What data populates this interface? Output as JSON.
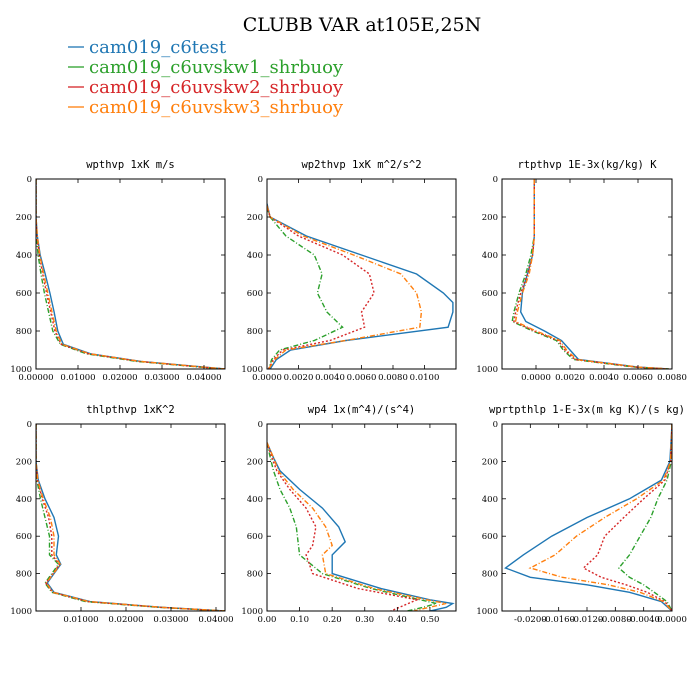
{
  "figure": {
    "title": "CLUBB VAR at105E,25N",
    "legend": [
      {
        "label": "cam019_c6test",
        "color": "#1f77b4",
        "dash": ""
      },
      {
        "label": "cam019_c6uvskw1_shrbuoy",
        "color": "#2ca02c",
        "dash": "5,2,1,2"
      },
      {
        "label": "cam019_c6uvskw2_shrbuoy",
        "color": "#d62728",
        "dash": "2,2"
      },
      {
        "label": "cam019_c6uvskw3_shrbuoy",
        "color": "#ff7f0e",
        "dash": "5,2,1,2"
      }
    ]
  },
  "chart_data": [
    {
      "type": "line",
      "title": "wpthvp  1xK m/s",
      "xlim": [
        0,
        0.045
      ],
      "ylim": [
        1000,
        0
      ],
      "xticks": [
        0,
        0.01,
        0.02,
        0.03,
        0.04
      ],
      "xticklabels": [
        "0.00000",
        "0.01000",
        "0.02000",
        "0.03000",
        "0.04000"
      ],
      "yticks": [
        0,
        200,
        400,
        600,
        800,
        1000
      ],
      "series": [
        {
          "name": "cam019_c6test",
          "y": [
            0,
            200,
            300,
            400,
            500,
            600,
            700,
            800,
            870,
            920,
            960,
            990,
            1000
          ],
          "x": [
            0,
            0,
            0.0003,
            0.001,
            0.0022,
            0.0033,
            0.0043,
            0.0052,
            0.0065,
            0.013,
            0.025,
            0.04,
            0.045
          ]
        },
        {
          "name": "cam019_c6uvskw1_shrbuoy",
          "y": [
            0,
            200,
            300,
            400,
            500,
            600,
            700,
            800,
            870,
            920,
            960,
            990,
            1000
          ],
          "x": [
            0,
            0,
            0.0001,
            0.0005,
            0.0012,
            0.002,
            0.003,
            0.004,
            0.0058,
            0.012,
            0.024,
            0.039,
            0.045
          ]
        },
        {
          "name": "cam019_c6uvskw2_shrbuoy",
          "y": [
            0,
            200,
            300,
            400,
            500,
            600,
            700,
            800,
            870,
            920,
            960,
            990,
            1000
          ],
          "x": [
            0,
            0,
            0.0002,
            0.0008,
            0.0016,
            0.0025,
            0.0035,
            0.0045,
            0.006,
            0.0125,
            0.0245,
            0.0395,
            0.045
          ]
        },
        {
          "name": "cam019_c6uvskw3_shrbuoy",
          "y": [
            0,
            200,
            300,
            400,
            500,
            600,
            700,
            800,
            870,
            920,
            960,
            990,
            1000
          ],
          "x": [
            0,
            0,
            0.0003,
            0.0009,
            0.0018,
            0.0028,
            0.0038,
            0.0048,
            0.0062,
            0.0128,
            0.0248,
            0.0398,
            0.045
          ]
        }
      ]
    },
    {
      "type": "line",
      "title": "wp2thvp  1xK m^2/s^2",
      "xlim": [
        0,
        0.012
      ],
      "ylim": [
        1000,
        0
      ],
      "xticks": [
        0,
        0.002,
        0.004,
        0.006,
        0.008,
        0.01
      ],
      "xticklabels": [
        "0.0000",
        "0.0020",
        "0.0040",
        "0.0060",
        "0.0080",
        "0.0100"
      ],
      "yticks": [
        0,
        200,
        400,
        600,
        800,
        1000
      ],
      "series": [
        {
          "name": "cam019_c6test",
          "y": [
            130,
            200,
            300,
            400,
            500,
            600,
            650,
            700,
            780,
            850,
            900,
            950,
            1000
          ],
          "x": [
            0,
            0.0002,
            0.0025,
            0.006,
            0.0095,
            0.0112,
            0.0118,
            0.0118,
            0.0115,
            0.005,
            0.0015,
            0.0006,
            0.0002
          ]
        },
        {
          "name": "cam019_c6uvskw1_shrbuoy",
          "y": [
            150,
            200,
            300,
            400,
            500,
            600,
            700,
            780,
            850,
            900,
            950,
            1000
          ],
          "x": [
            0,
            0.0002,
            0.0012,
            0.003,
            0.0035,
            0.0032,
            0.0038,
            0.0048,
            0.003,
            0.0008,
            0.0003,
            0.0001
          ]
        },
        {
          "name": "cam019_c6uvskw2_shrbuoy",
          "y": [
            140,
            200,
            300,
            400,
            500,
            600,
            700,
            780,
            850,
            900,
            950,
            1000
          ],
          "x": [
            0,
            0.0002,
            0.002,
            0.0048,
            0.0065,
            0.0068,
            0.006,
            0.0062,
            0.004,
            0.001,
            0.0004,
            0.0001
          ]
        },
        {
          "name": "cam019_c6uvskw3_shrbuoy",
          "y": [
            140,
            200,
            300,
            400,
            500,
            600,
            700,
            780,
            850,
            900,
            950,
            1000
          ],
          "x": [
            0,
            0.0002,
            0.0023,
            0.0055,
            0.0085,
            0.0095,
            0.0098,
            0.0097,
            0.005,
            0.0012,
            0.0005,
            0.0001
          ]
        }
      ]
    },
    {
      "type": "line",
      "title": "rtpthvp  1E-3x(kg/kg) K",
      "xlim": [
        -0.002,
        0.008
      ],
      "ylim": [
        1000,
        0
      ],
      "xticks": [
        0,
        0.002,
        0.004,
        0.006,
        0.008
      ],
      "xticklabels": [
        "0.0000",
        "0.0020",
        "0.0040",
        "0.0060",
        "0.0080"
      ],
      "yticks": [
        0,
        200,
        400,
        600,
        800,
        1000
      ],
      "series": [
        {
          "name": "cam019_c6test",
          "y": [
            0,
            300,
            400,
            500,
            560,
            600,
            700,
            750,
            800,
            850,
            900,
            950,
            990,
            1000
          ],
          "x": [
            -0.0001,
            -0.0001,
            -0.0002,
            -0.0005,
            -0.0007,
            -0.0008,
            -0.0009,
            -0.0006,
            0.0005,
            0.0015,
            0.002,
            0.0025,
            0.006,
            0.0078
          ]
        },
        {
          "name": "cam019_c6uvskw1_shrbuoy",
          "y": [
            0,
            300,
            400,
            500,
            600,
            700,
            750,
            800,
            850,
            900,
            950,
            990,
            1000
          ],
          "x": [
            -0.0001,
            -0.0001,
            -0.0003,
            -0.0006,
            -0.001,
            -0.0013,
            -0.0014,
            -0.0002,
            0.0012,
            0.0016,
            0.0022,
            0.0058,
            0.0078
          ]
        },
        {
          "name": "cam019_c6uvskw2_shrbuoy",
          "y": [
            0,
            300,
            400,
            500,
            600,
            700,
            750,
            800,
            850,
            900,
            950,
            990,
            1000
          ],
          "x": [
            -0.0001,
            -0.0001,
            -0.0002,
            -0.0005,
            -0.0009,
            -0.0012,
            -0.0013,
            -0.0001,
            0.0013,
            0.0017,
            0.0023,
            0.0059,
            0.0078
          ]
        },
        {
          "name": "cam019_c6uvskw3_shrbuoy",
          "y": [
            0,
            300,
            400,
            500,
            600,
            700,
            750,
            800,
            850,
            900,
            950,
            990,
            1000
          ],
          "x": [
            -0.0001,
            -0.0001,
            -0.0002,
            -0.0004,
            -0.0008,
            -0.0011,
            -0.0012,
            0,
            0.0014,
            0.0018,
            0.0024,
            0.006,
            0.0078
          ]
        }
      ]
    },
    {
      "type": "line",
      "title": "thlpthvp  1xK^2",
      "xlim": [
        0,
        0.042
      ],
      "ylim": [
        1000,
        0
      ],
      "xticks": [
        0.01,
        0.02,
        0.03,
        0.04
      ],
      "xticklabels": [
        "0.01000",
        "0.02000",
        "0.03000",
        "0.04000"
      ],
      "yticks": [
        0,
        200,
        400,
        600,
        800,
        1000
      ],
      "series": [
        {
          "name": "cam019_c6test",
          "y": [
            0,
            200,
            300,
            400,
            500,
            600,
            700,
            750,
            800,
            850,
            900,
            950,
            980,
            1000
          ],
          "x": [
            0,
            0,
            0.0005,
            0.002,
            0.004,
            0.005,
            0.0045,
            0.0055,
            0.004,
            0.0025,
            0.004,
            0.012,
            0.028,
            0.042
          ]
        },
        {
          "name": "cam019_c6uvskw1_shrbuoy",
          "y": [
            0,
            200,
            300,
            400,
            500,
            600,
            700,
            750,
            800,
            850,
            900,
            950,
            980,
            1000
          ],
          "x": [
            0,
            0,
            0.0002,
            0.001,
            0.002,
            0.003,
            0.003,
            0.005,
            0.0035,
            0.002,
            0.0035,
            0.011,
            0.027,
            0.042
          ]
        },
        {
          "name": "cam019_c6uvskw2_shrbuoy",
          "y": [
            0,
            200,
            300,
            400,
            500,
            600,
            700,
            750,
            800,
            850,
            900,
            950,
            980,
            1000
          ],
          "x": [
            0,
            0,
            0.0003,
            0.0014,
            0.0028,
            0.0035,
            0.0035,
            0.0052,
            0.0038,
            0.0022,
            0.0037,
            0.0115,
            0.0275,
            0.042
          ]
        },
        {
          "name": "cam019_c6uvskw3_shrbuoy",
          "y": [
            0,
            200,
            300,
            400,
            500,
            600,
            700,
            750,
            800,
            850,
            900,
            950,
            980,
            1000
          ],
          "x": [
            0,
            0,
            0.0004,
            0.0016,
            0.0032,
            0.004,
            0.004,
            0.0054,
            0.0039,
            0.0023,
            0.0038,
            0.0118,
            0.0278,
            0.042
          ]
        }
      ]
    },
    {
      "type": "line",
      "title": "wp4  1x(m^4)/(s^4)",
      "xlim": [
        0,
        0.58
      ],
      "ylim": [
        1000,
        0
      ],
      "xticks": [
        0,
        0.1,
        0.2,
        0.3,
        0.4,
        0.5
      ],
      "xticklabels": [
        "0.00",
        "0.10",
        "0.20",
        "0.30",
        "0.40",
        "0.50"
      ],
      "yticks": [
        0,
        200,
        400,
        600,
        800,
        1000
      ],
      "series": [
        {
          "name": "cam019_c6test",
          "y": [
            100,
            180,
            250,
            350,
            450,
            550,
            630,
            700,
            800,
            880,
            940,
            960,
            980,
            1000
          ],
          "x": [
            0,
            0.02,
            0.04,
            0.1,
            0.17,
            0.22,
            0.24,
            0.2,
            0.2,
            0.35,
            0.5,
            0.57,
            0.55,
            0.5
          ]
        },
        {
          "name": "cam019_c6uvskw1_shrbuoy",
          "y": [
            100,
            180,
            250,
            350,
            450,
            550,
            700,
            800,
            880,
            940,
            960,
            980,
            1000
          ],
          "x": [
            0,
            0.01,
            0.02,
            0.04,
            0.07,
            0.09,
            0.1,
            0.17,
            0.32,
            0.47,
            0.52,
            0.48,
            0.43
          ]
        },
        {
          "name": "cam019_c6uvskw2_shrbuoy",
          "y": [
            100,
            180,
            250,
            350,
            450,
            550,
            650,
            700,
            800,
            880,
            940,
            970,
            1000
          ],
          "x": [
            0,
            0.015,
            0.03,
            0.07,
            0.12,
            0.15,
            0.14,
            0.12,
            0.14,
            0.28,
            0.46,
            0.42,
            0.38
          ]
        },
        {
          "name": "cam019_c6uvskw3_shrbuoy",
          "y": [
            100,
            180,
            250,
            350,
            450,
            550,
            650,
            700,
            800,
            880,
            940,
            960,
            1000
          ],
          "x": [
            0,
            0.02,
            0.035,
            0.08,
            0.14,
            0.18,
            0.2,
            0.17,
            0.18,
            0.33,
            0.49,
            0.55,
            0.45
          ]
        }
      ]
    },
    {
      "type": "line",
      "title": "wprtpthlp  1-E-3x(m kg K)/(s kg)",
      "xlim": [
        -0.024,
        0
      ],
      "ylim": [
        1000,
        0
      ],
      "xticks": [
        -0.02,
        -0.016,
        -0.012,
        -0.008,
        -0.004,
        0
      ],
      "xticklabels": [
        "-0.0200",
        "-0.0160",
        "-0.0120",
        "-0.0080",
        "-0.0040",
        "0.0000"
      ],
      "yticks": [
        0,
        200,
        400,
        600,
        800,
        1000
      ],
      "series": [
        {
          "name": "cam019_c6test",
          "y": [
            0,
            200,
            300,
            400,
            500,
            600,
            700,
            770,
            820,
            860,
            900,
            950,
            1000
          ],
          "x": [
            0,
            -0.0003,
            -0.0015,
            -0.006,
            -0.012,
            -0.017,
            -0.021,
            -0.0235,
            -0.02,
            -0.012,
            -0.006,
            -0.0015,
            0
          ]
        },
        {
          "name": "cam019_c6uvskw1_shrbuoy",
          "y": [
            0,
            200,
            300,
            400,
            500,
            600,
            700,
            770,
            820,
            860,
            900,
            950,
            1000
          ],
          "x": [
            0,
            -0.0001,
            -0.0007,
            -0.002,
            -0.003,
            -0.0045,
            -0.006,
            -0.0075,
            -0.006,
            -0.004,
            -0.0025,
            -0.0007,
            0
          ]
        },
        {
          "name": "cam019_c6uvskw2_shrbuoy",
          "y": [
            0,
            200,
            300,
            400,
            500,
            600,
            700,
            770,
            820,
            860,
            900,
            950,
            1000
          ],
          "x": [
            0,
            -0.0002,
            -0.001,
            -0.004,
            -0.0068,
            -0.0095,
            -0.0105,
            -0.0125,
            -0.01,
            -0.0065,
            -0.0035,
            -0.001,
            0
          ]
        },
        {
          "name": "cam019_c6uvskw3_shrbuoy",
          "y": [
            0,
            200,
            300,
            400,
            500,
            600,
            700,
            770,
            820,
            860,
            900,
            950,
            1000
          ],
          "x": [
            0,
            -0.0002,
            -0.0012,
            -0.005,
            -0.0095,
            -0.0135,
            -0.0165,
            -0.02,
            -0.0155,
            -0.009,
            -0.0045,
            -0.0012,
            0
          ]
        }
      ]
    }
  ]
}
